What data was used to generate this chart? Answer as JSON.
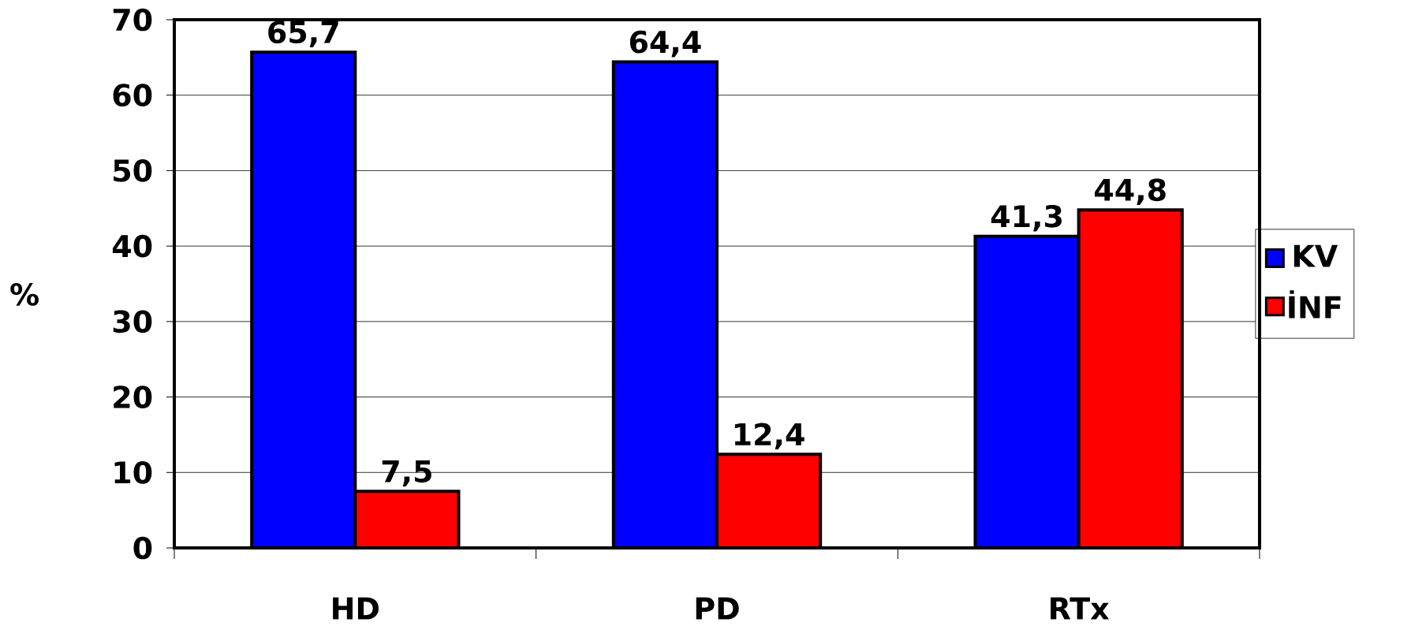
{
  "chart_data": {
    "type": "bar",
    "ylabel": "%",
    "categories": [
      "HD",
      "PD",
      "RTx"
    ],
    "series": [
      {
        "name": "KV",
        "color": "#0000ff",
        "values": [
          65.7,
          64.4,
          41.3
        ],
        "value_labels": [
          "65,7",
          "64,4",
          "41,3"
        ]
      },
      {
        "name": "İNF",
        "color": "#ff0000",
        "values": [
          7.5,
          12.4,
          44.8
        ],
        "value_labels": [
          "7,5",
          "12,4",
          "44,8"
        ]
      }
    ],
    "ylim": [
      0,
      70
    ],
    "yticks": [
      0,
      10,
      20,
      30,
      40,
      50,
      60,
      70
    ],
    "grid": "y",
    "legend": "right"
  }
}
